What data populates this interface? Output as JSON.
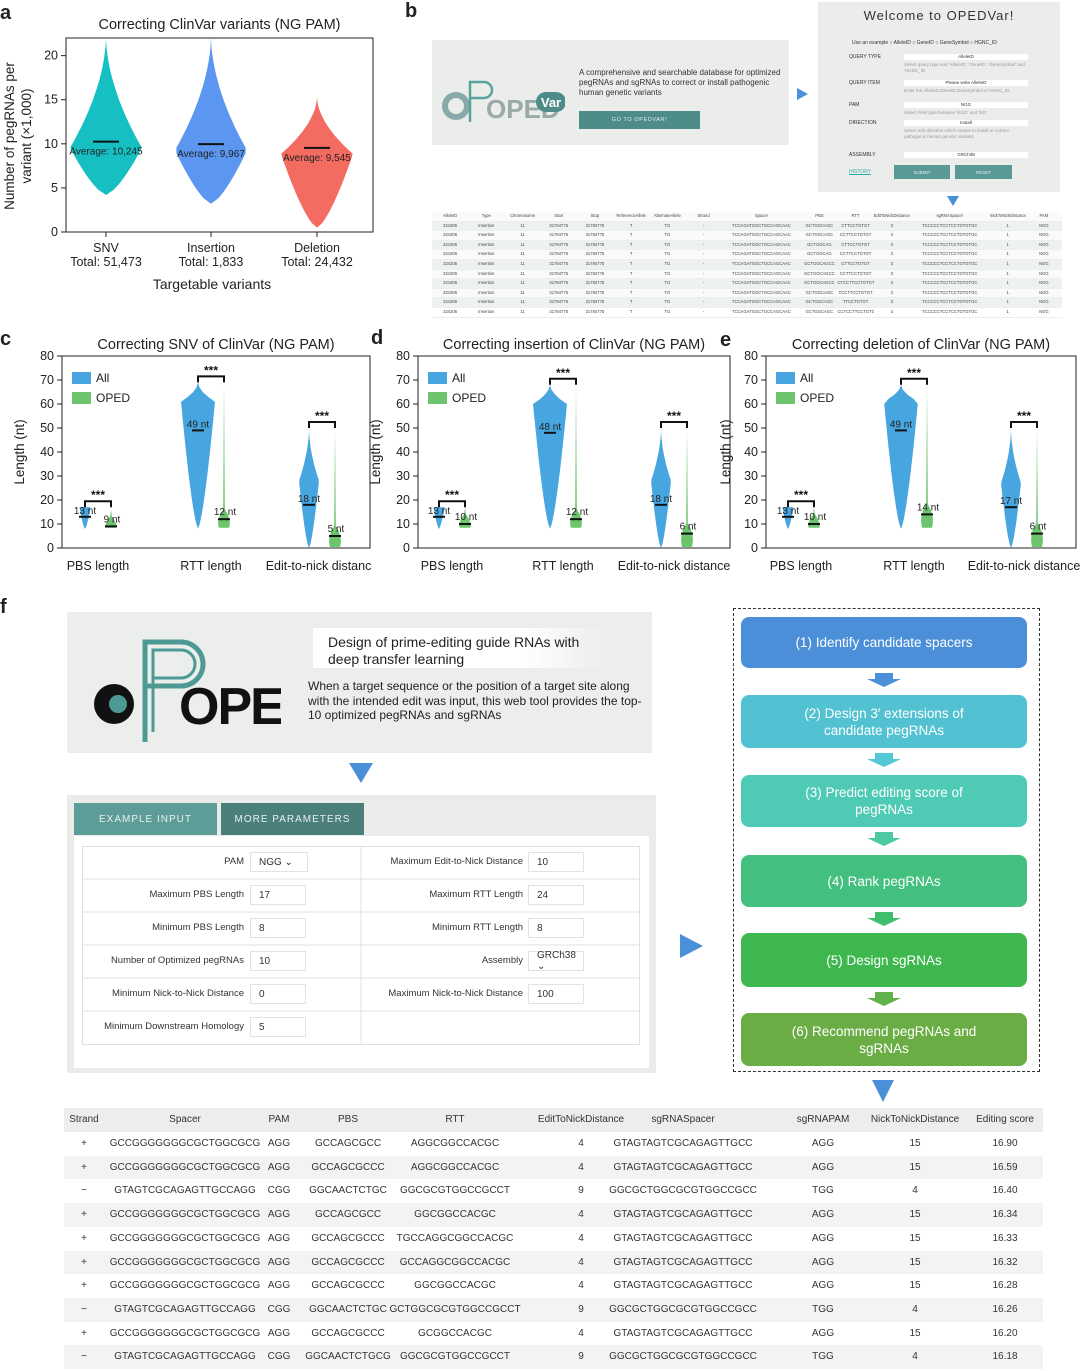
{
  "panel_labels": {
    "a": "a",
    "b": "b",
    "c": "c",
    "d": "d",
    "e": "e",
    "f": "f"
  },
  "colors": {
    "snv": "#15bfc2",
    "insertion": "#5b96f0",
    "deletion": "#f46b61",
    "all": "#47a6e0",
    "oped": "#6cc46c",
    "teal_dark": "#4d8c88",
    "arrow": "#4a90d9"
  },
  "chart_data": [
    {
      "panel": "a",
      "type": "violin",
      "title": "Correcting ClinVar variants (NG PAM)",
      "ylabel": "Number of pegRNAs per variant (×1,000)",
      "xlabel": "Targetable variants",
      "ylim": [
        0,
        22
      ],
      "yticks": [
        0,
        5,
        10,
        15,
        20
      ],
      "categories": [
        "SNV",
        "Insertion",
        "Deletion"
      ],
      "totals": [
        "Total: 51,473",
        "Total: 1,833",
        "Total: 24,432"
      ],
      "averages": [
        10.245,
        9.967,
        9.545
      ],
      "average_labels": [
        "Average: 10,245",
        "Average: 9,967",
        "Average: 9,545"
      ],
      "ranges": [
        [
          4.2,
          22.2
        ],
        [
          3.2,
          22.2
        ],
        [
          0.5,
          15.3
        ]
      ]
    },
    {
      "panel": "c",
      "type": "violin",
      "title": "Correcting SNV of ClinVar (NG PAM)",
      "ylabel": "Length (nt)",
      "ylim": [
        0,
        80
      ],
      "yticks": [
        0,
        10,
        20,
        30,
        40,
        50,
        60,
        70,
        80
      ],
      "legend": [
        "All",
        "OPED"
      ],
      "legend_position": "top-left",
      "categories": [
        "PBS length",
        "RTT length",
        "Edit-to-nick distance"
      ],
      "all_medians": [
        13,
        49,
        18
      ],
      "oped_medians": [
        9,
        12,
        5
      ],
      "all_labels": [
        "13 nt",
        "49 nt",
        "18 nt"
      ],
      "oped_labels": [
        "9 nt",
        "12 nt",
        "5 nt"
      ],
      "significance": [
        "***",
        "***",
        "***"
      ],
      "all_ranges": [
        [
          8,
          17
        ],
        [
          8,
          69
        ],
        [
          0,
          50
        ]
      ],
      "oped_ranges": [
        [
          8,
          16
        ],
        [
          8,
          69
        ],
        [
          0,
          50
        ]
      ]
    },
    {
      "panel": "d",
      "type": "violin",
      "title": "Correcting insertion of ClinVar (NG PAM)",
      "ylabel": "Length (nt)",
      "ylim": [
        0,
        80
      ],
      "yticks": [
        0,
        10,
        20,
        30,
        40,
        50,
        60,
        70,
        80
      ],
      "legend": [
        "All",
        "OPED"
      ],
      "legend_position": "top-left",
      "categories": [
        "PBS length",
        "RTT length",
        "Edit-to-nick distance"
      ],
      "all_medians": [
        13,
        48,
        18
      ],
      "oped_medians": [
        10,
        12,
        6
      ],
      "all_labels": [
        "13 nt",
        "48 nt",
        "18 nt"
      ],
      "oped_labels": [
        "10 nt",
        "12 nt",
        "6 nt"
      ],
      "significance": [
        "***",
        "***",
        "***"
      ],
      "all_ranges": [
        [
          8,
          17
        ],
        [
          8,
          68
        ],
        [
          0,
          50
        ]
      ],
      "oped_ranges": [
        [
          8,
          17
        ],
        [
          8,
          68
        ],
        [
          0,
          50
        ]
      ]
    },
    {
      "panel": "e",
      "type": "violin",
      "title": "Correcting deletion of ClinVar (NG PAM)",
      "ylabel": "Length (nt)",
      "ylim": [
        0,
        80
      ],
      "yticks": [
        0,
        10,
        20,
        30,
        40,
        50,
        60,
        70,
        80
      ],
      "legend": [
        "All",
        "OPED"
      ],
      "legend_position": "top-left",
      "categories": [
        "PBS length",
        "RTT length",
        "Edit-to-nick distance"
      ],
      "all_medians": [
        13,
        49,
        17
      ],
      "oped_medians": [
        10,
        14,
        6
      ],
      "all_labels": [
        "13 nt",
        "49 nt",
        "17 nt"
      ],
      "oped_labels": [
        "10 nt",
        "14 nt",
        "6 nt"
      ],
      "significance": [
        "***",
        "***",
        "***"
      ],
      "all_ranges": [
        [
          8,
          17
        ],
        [
          8,
          68
        ],
        [
          0,
          50
        ]
      ],
      "oped_ranges": [
        [
          8,
          17
        ],
        [
          8,
          68
        ],
        [
          0,
          50
        ]
      ]
    }
  ],
  "panel_b": {
    "welcome": "Welcome to OPEDVar!",
    "logo_text": "OPED",
    "logo_badge": "Var",
    "description": "A comprehensive and searchable database for optimized pegRNAs and sgRNAs to correct or install pathogenic human genetic variants",
    "go_button": "GO TO OPEDVAR!",
    "example_line": "Use an example ○ AlleleID ○ GeneID ○ GeneSymbol ○ HGNC_ID",
    "fields": [
      {
        "label": "QUERY TYPE",
        "value": "AlleleID",
        "hint": "Select query type and 'AlleleID', 'GeneID', 'GeneSymbol' and 'HGNC_ID'"
      },
      {
        "label": "QUERY ITEM",
        "value": "Please write AlleleID",
        "hint": "Enter the AlleleID,GeneID,GeneSymbol or HGNC_ID"
      },
      {
        "label": "PAM",
        "value": "NGG",
        "hint": "Select PAM type between 'NGG' and 'NG'"
      },
      {
        "label": "DIRECTION",
        "value": "Install",
        "hint": "Select edit direction which means to install or correct pathogenic human genetic variants"
      },
      {
        "label": "ASSEMBLY",
        "value": "GRCh38",
        "hint": ""
      }
    ],
    "history_link": "HISTORY",
    "submit": "SUBMIT",
    "reset": "RESET",
    "table_headers": [
      "AlleleID",
      "Type",
      "Chromosome",
      "Start",
      "Stop",
      "ReferenceAllele",
      "AlternateAllele",
      "Strand",
      "Spacer",
      "PBS",
      "RTT",
      "EditToNickDistance",
      "sgRNASpacer",
      "NickToNickDistance",
      "PAM"
    ],
    "table_rows": [
      [
        "324206",
        "Insertion",
        "11",
        "31784775",
        "31784775",
        "T",
        "TG",
        "-",
        "TCCAGATGGCTGCCAGCAAC",
        "GCTGGCAGC",
        "CTTCCTGTGT",
        "3",
        "TCCCCCTCCTCCTGTGTGC",
        "1",
        "NGG"
      ],
      [
        "324206",
        "Insertion",
        "11",
        "31784775",
        "31784775",
        "T",
        "TG",
        "-",
        "TCCAGATGGCTGCCAGCAAC",
        "GCTGGCAGC",
        "CCTTCCTGTGT",
        "3",
        "TCCCCCTCCTCCTGTGTGC",
        "1",
        "NGG"
      ],
      [
        "324206",
        "Insertion",
        "11",
        "31784775",
        "31784775",
        "T",
        "TG",
        "-",
        "TCCAGATGGCTGCCAGCAAC",
        "GCTGGCAG",
        "CTTCCTGTGT",
        "3",
        "TCCCCCTCCTCCTGTGTGC",
        "1",
        "NGG"
      ],
      [
        "324206",
        "Insertion",
        "11",
        "31784775",
        "31784775",
        "T",
        "TG",
        "-",
        "TCCAGATGGCTGCCAGCAAC",
        "GCTGGCAG",
        "CCTTCCTGTGT",
        "3",
        "TCCCCCTCCTCCTGTGTGC",
        "1",
        "NGG"
      ],
      [
        "324206",
        "Insertion",
        "11",
        "31784775",
        "31784775",
        "T",
        "TG",
        "-",
        "TCCAGATGGCTGCCAGCAAC",
        "GCTGGCAGCC",
        "CTTCCTGTGT",
        "3",
        "TCCCCCTCCTCCTGTGTGC",
        "1",
        "NGG"
      ],
      [
        "324206",
        "Insertion",
        "11",
        "31784775",
        "31784775",
        "T",
        "TG",
        "-",
        "TCCAGATGGCTGCCAGCAAC",
        "GCTGGCAGCC",
        "CCTTCCTGTGT",
        "3",
        "TCCCCCTCCTCCTGTGTGC",
        "1",
        "NGG"
      ],
      [
        "324206",
        "Insertion",
        "11",
        "31784775",
        "31784775",
        "T",
        "TG",
        "-",
        "TCCAGATGGCTGCCAGCAAC",
        "GCTGGCAGCC",
        "CTCCTTCCTGTGT",
        "3",
        "TCCCCCTCCTCCTGTGTGC",
        "1",
        "NGG"
      ],
      [
        "324206",
        "Insertion",
        "11",
        "31784775",
        "31784775",
        "T",
        "TG",
        "-",
        "TCCAGATGGCTGCCAGCAAC",
        "GCTGGCAGC",
        "TCCTTCCTGTGT",
        "3",
        "TCCCCCTCCTCCTGTGTGC",
        "1",
        "NGG"
      ],
      [
        "324206",
        "Insertion",
        "11",
        "31784775",
        "31784775",
        "T",
        "TG",
        "-",
        "TCCAGATGGCTGCCAGCAAC",
        "GCTGGCAGC",
        "TTCCTGTGT",
        "3",
        "TCCCCCTCCTCCTGTGTGC",
        "1",
        "NGG"
      ],
      [
        "324206",
        "Insertion",
        "11",
        "31784775",
        "31784775",
        "T",
        "TG",
        "-",
        "TCCAGATGGCTGCCAGCAAC",
        "GCTGGCAGC",
        "CCTCCTTCCTGTGT",
        "3",
        "TCCCCCTCCTCCTGTGTGC",
        "1",
        "NGG"
      ]
    ]
  },
  "panel_f": {
    "logo_text": "OPED",
    "headline": "Design of prime-editing guide RNAs with deep transfer learning",
    "description": "When a target sequence or the position of a target site along with the intended edit was input, this web tool provides the top-10 optimized pegRNAs and sgRNAs",
    "tab_example": "EXAMPLE INPUT",
    "tab_more": "MORE PARAMETERS",
    "form_left": [
      {
        "label": "PAM",
        "value": "NGG",
        "select": true
      },
      {
        "label": "Maximum PBS Length",
        "value": "17"
      },
      {
        "label": "Minimum PBS Length",
        "value": "8"
      },
      {
        "label": "Number of Optimized pegRNAs",
        "value": "10"
      },
      {
        "label": "Minimum Nick-to-Nick Distance",
        "value": "0"
      },
      {
        "label": "Minimum Downstream Homology",
        "value": "5"
      }
    ],
    "form_right": [
      {
        "label": "Maximum Edit-to-Nick Distance",
        "value": "10"
      },
      {
        "label": "Maximum RTT Length",
        "value": "24"
      },
      {
        "label": "Minimum RTT Length",
        "value": "8"
      },
      {
        "label": "Assembly",
        "value": "GRCh38",
        "select": true
      },
      {
        "label": "Maximum Nick-to-Nick Distance",
        "value": "100"
      }
    ],
    "steps": [
      {
        "label": "(1) Identify candidate spacers",
        "color": "#4a8fd8"
      },
      {
        "label": "(2) Design 3′ extensions of candidate pegRNAs",
        "color": "#52c2d3"
      },
      {
        "label": "(3) Predict editing score of pegRNAs",
        "color": "#4fcbb5"
      },
      {
        "label": "(4) Rank pegRNAs",
        "color": "#43c07f"
      },
      {
        "label": "(5) Design sgRNAs",
        "color": "#3eb74e"
      },
      {
        "label": "(6) Recommend pegRNAs and sgRNAs",
        "color": "#6aad44"
      }
    ],
    "step_arrow_colors": [
      "#4a8fd8",
      "#52c8d6",
      "#4ccaa4",
      "#3fbe6c",
      "#5fb24a"
    ],
    "result_headers": [
      "Strand",
      "Spacer",
      "PAM",
      "PBS",
      "RTT",
      "EditToNickDistance",
      "sgRNASpacer",
      "sgRNAPAM",
      "NickToNickDistance",
      "Editing score"
    ],
    "result_rows": [
      [
        "+",
        "GCCGGGGGGGCGCTGGCGCG",
        "AGG",
        "GCCAGCGCC",
        "AGGCGGCCACGC",
        "4",
        "GTAGTAGTCGCAGAGTTGCC",
        "AGG",
        "15",
        "16.90"
      ],
      [
        "+",
        "GCCGGGGGGGCGCTGGCGCG",
        "AGG",
        "GCCAGCGCCC",
        "AGGCGGCCACGC",
        "4",
        "GTAGTAGTCGCAGAGTTGCC",
        "AGG",
        "15",
        "16.59"
      ],
      [
        "−",
        "GTAGTCGCAGAGTTGCCAGG",
        "CGG",
        "GGCAACTCTGC",
        "GGCGCGTGGCCGCCT",
        "9",
        "GGCGCTGGCGCGTGGCCGCC",
        "TGG",
        "4",
        "16.40"
      ],
      [
        "+",
        "GCCGGGGGGGCGCTGGCGCG",
        "AGG",
        "GCCAGCGCC",
        "GGCGGCCACGC",
        "4",
        "GTAGTAGTCGCAGAGTTGCC",
        "AGG",
        "15",
        "16.34"
      ],
      [
        "+",
        "GCCGGGGGGGCGCTGGCGCG",
        "AGG",
        "GCCAGCGCCC",
        "TGCCAGGCGGCCACGC",
        "4",
        "GTAGTAGTCGCAGAGTTGCC",
        "AGG",
        "15",
        "16.33"
      ],
      [
        "+",
        "GCCGGGGGGGCGCTGGCGCG",
        "AGG",
        "GCCAGCGCCC",
        "GCCAGGCGGCCACGC",
        "4",
        "GTAGTAGTCGCAGAGTTGCC",
        "AGG",
        "15",
        "16.32"
      ],
      [
        "+",
        "GCCGGGGGGGCGCTGGCGCG",
        "AGG",
        "GCCAGCGCCC",
        "GGCGGCCACGC",
        "4",
        "GTAGTAGTCGCAGAGTTGCC",
        "AGG",
        "15",
        "16.28"
      ],
      [
        "−",
        "GTAGTCGCAGAGTTGCCAGG",
        "CGG",
        "GGCAACTCTGC",
        "GCTGGCGCGTGGCCGCCT",
        "9",
        "GGCGCTGGCGCGTGGCCGCC",
        "TGG",
        "4",
        "16.26"
      ],
      [
        "+",
        "GCCGGGGGGGCGCTGGCGCG",
        "AGG",
        "GCCAGCGCCC",
        "GCGGCCACGC",
        "4",
        "GTAGTAGTCGCAGAGTTGCC",
        "AGG",
        "15",
        "16.20"
      ],
      [
        "−",
        "GTAGTCGCAGAGTTGCCAGG",
        "CGG",
        "GGCAACTCTGCG",
        "GGCGCGTGGCCGCCT",
        "9",
        "GGCGCTGGCGCGTGGCCGCC",
        "TGG",
        "4",
        "16.18"
      ]
    ]
  }
}
